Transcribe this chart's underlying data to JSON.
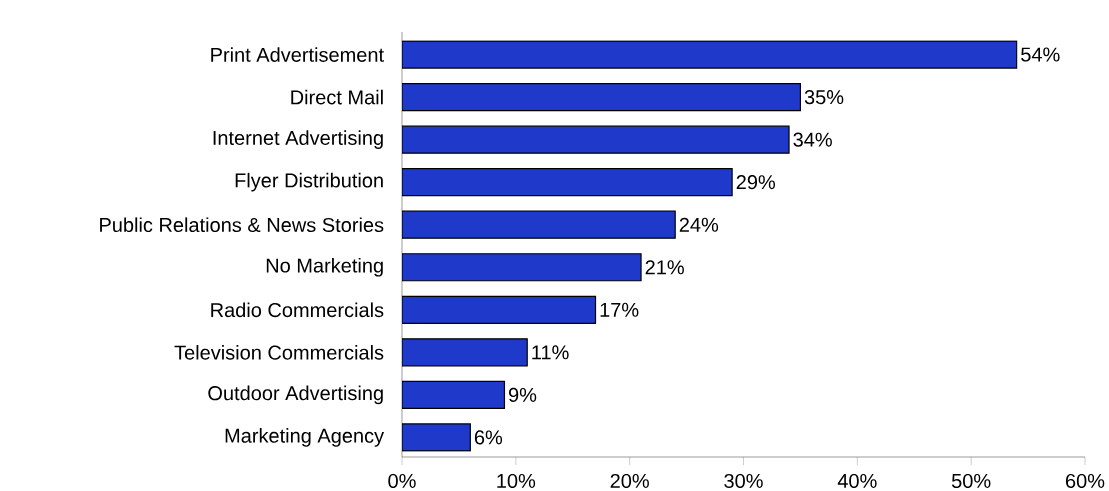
{
  "chart_data": {
    "type": "bar",
    "orientation": "horizontal",
    "categories": [
      "Print Advertisement",
      "Direct Mail",
      "Internet Advertising",
      "Flyer Distribution",
      "Public Relations & News Stories",
      "No Marketing",
      "Radio Commercials",
      "Television Commercials",
      "Outdoor Advertising",
      "Marketing Agency"
    ],
    "values": [
      54,
      35,
      34,
      29,
      24,
      21,
      17,
      11,
      9,
      6
    ],
    "value_labels": [
      "54%",
      "35%",
      "34%",
      "29%",
      "24%",
      "21%",
      "17%",
      "11%",
      "9%",
      "6%"
    ],
    "color": "#1f3acb",
    "xlim": [
      0,
      60
    ],
    "xticks": [
      {
        "value": 0,
        "label": "0%"
      },
      {
        "value": 10,
        "label": "10%"
      },
      {
        "value": 20,
        "label": "20%"
      },
      {
        "value": 30,
        "label": "30%"
      },
      {
        "value": 40,
        "label": "40%"
      },
      {
        "value": 50,
        "label": "50%"
      },
      {
        "value": 60,
        "label": "60%"
      }
    ],
    "grid": false
  }
}
